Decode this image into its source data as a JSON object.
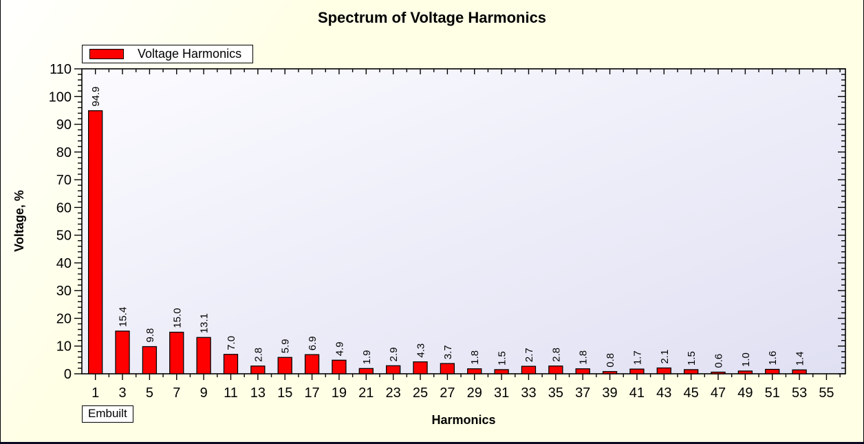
{
  "window": {
    "background_color": "#FFFFE6",
    "border_color": "#000000",
    "bottom_edge_color": "#0A0A22"
  },
  "chart_data": {
    "type": "bar",
    "title": "Spectrum of Voltage Harmonics",
    "xlabel": "Harmonics",
    "ylabel": "Voltage, %",
    "legend": {
      "label": "Voltage Harmonics",
      "position": "top-left",
      "swatch_color": "#FF0000"
    },
    "annotation": "Embuilt",
    "categories": [
      1,
      3,
      5,
      7,
      9,
      11,
      13,
      15,
      17,
      19,
      21,
      23,
      25,
      27,
      29,
      31,
      33,
      35,
      37,
      39,
      41,
      43,
      45,
      47,
      49,
      51,
      53,
      55
    ],
    "values": [
      94.9,
      15.4,
      9.8,
      15.0,
      13.1,
      7.0,
      2.8,
      5.9,
      6.9,
      4.9,
      1.9,
      2.9,
      4.3,
      3.7,
      1.8,
      1.5,
      2.7,
      2.8,
      1.8,
      0.8,
      1.7,
      2.1,
      1.5,
      0.6,
      1.0,
      1.6,
      1.4,
      null
    ],
    "value_label_decimals": 1,
    "bar_color": "#FF0000",
    "bar_border_color": "#000000",
    "ylim": [
      0,
      110
    ],
    "ytick_major": 10,
    "ytick_minor": 2,
    "x_axis_range": [
      0,
      56.4
    ],
    "grid": false,
    "plot_background": {
      "from": "#FBFBFF",
      "to": "#E0E0F3"
    }
  }
}
